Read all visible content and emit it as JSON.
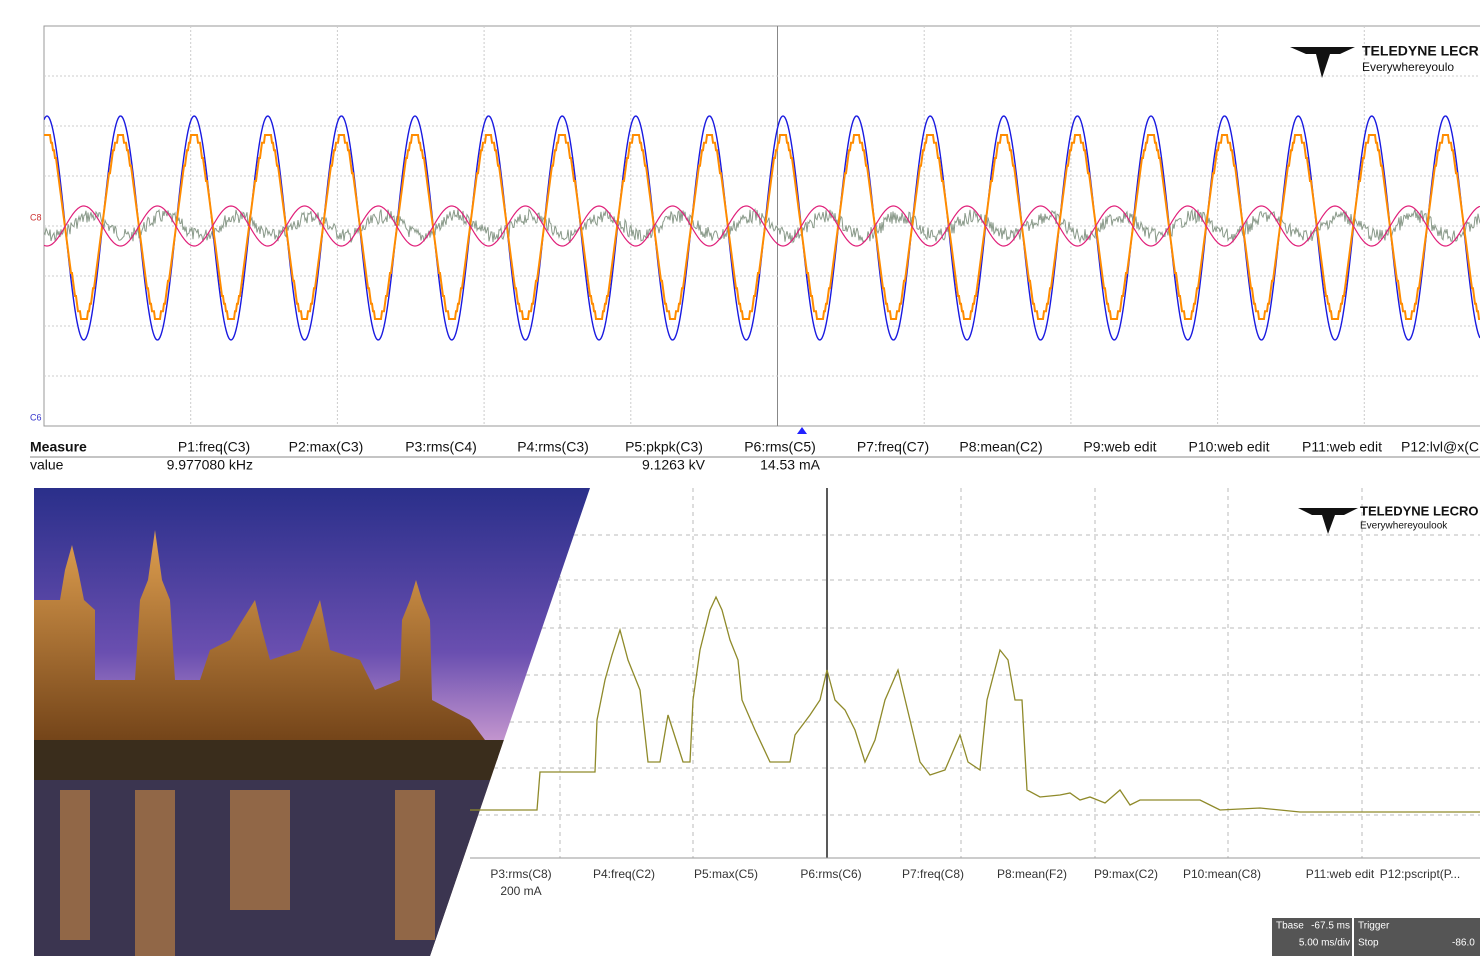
{
  "top_scope": {
    "logo": {
      "brand": "TELEDYNE LECR",
      "tagline": "Everywhereyoulo"
    },
    "channel_labels": [
      "C8",
      "C6"
    ]
  },
  "measure_table": {
    "title": "Measure",
    "row_label": "value",
    "params": [
      {
        "name": "P1:freq(C3)",
        "value": "9.977080 kHz"
      },
      {
        "name": "P2:max(C3)"
      },
      {
        "name": "P3:rms(C4)"
      },
      {
        "name": "P4:rms(C3)"
      },
      {
        "name": "P5:pkpk(C3)",
        "value": "9.1263 kV"
      },
      {
        "name": "P6:rms(C5)",
        "value": "14.53 mA"
      },
      {
        "name": "P7:freq(C7)"
      },
      {
        "name": "P8:mean(C2)"
      },
      {
        "name": "P9:web edit"
      },
      {
        "name": "P10:web edit"
      },
      {
        "name": "P11:web edit"
      },
      {
        "name": "P12:lvl@x(C"
      }
    ]
  },
  "bottom_scope": {
    "logo": {
      "brand": "TELEDYNE LECRO",
      "tagline": "Everywhereyoulook"
    },
    "params": [
      {
        "name": "P3:rms(C8)",
        "value": "200 mA"
      },
      {
        "name": "P4:freq(C2)"
      },
      {
        "name": "P5:max(C5)"
      },
      {
        "name": "P6:rms(C6)"
      },
      {
        "name": "P7:freq(C8)"
      },
      {
        "name": "P8:mean(F2)"
      },
      {
        "name": "P9:max(C2)"
      },
      {
        "name": "P10:mean(C8)"
      },
      {
        "name": "P11:web edit"
      },
      {
        "name": "P12:pscript(P..."
      }
    ],
    "timebase": {
      "label": "Tbase",
      "delay": "-67.5 ms",
      "scale": "5.00 ms/div"
    },
    "trigger": {
      "label": "Trigger",
      "mode": "Stop",
      "level": "-86.0"
    }
  }
}
